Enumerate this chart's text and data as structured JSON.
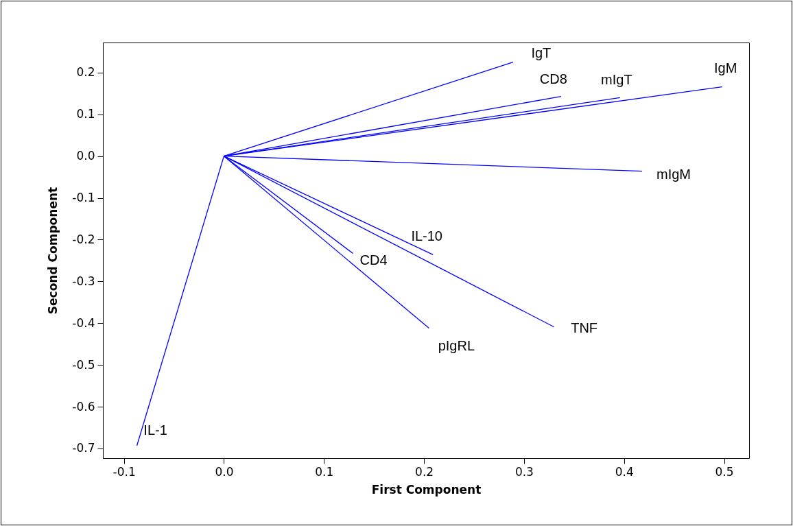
{
  "chart_data": {
    "type": "line",
    "xlabel": "First Component",
    "ylabel": "Second Component",
    "xlim": [
      -0.121,
      0.525
    ],
    "ylim": [
      -0.723,
      0.272
    ],
    "xticks": [
      -0.1,
      {
        "value": 0,
        "label": "0.0"
      },
      0.1,
      0.2,
      0.3,
      0.4,
      0.5
    ],
    "yticks": [
      -0.7,
      -0.6,
      -0.5,
      -0.4,
      -0.3,
      -0.2,
      -0.1,
      {
        "value": 0,
        "label": "0.0"
      },
      0.1,
      0.2
    ],
    "grid": false,
    "legend": false,
    "marker": "none",
    "line_style": "solid",
    "series": [
      {
        "name": "IgT",
        "color": "#0000ff",
        "x": [
          0,
          0.289
        ],
        "values": [
          0,
          0.225
        ]
      },
      {
        "name": "CD8",
        "color": "#0000ff",
        "x": [
          0,
          0.337
        ],
        "values": [
          0,
          0.143
        ]
      },
      {
        "name": "mIgT",
        "color": "#0000ff",
        "x": [
          0,
          0.396
        ],
        "values": [
          0,
          0.14
        ]
      },
      {
        "name": "IgM",
        "color": "#0000ff",
        "x": [
          0,
          0.498
        ],
        "values": [
          0,
          0.166
        ]
      },
      {
        "name": "mIgM",
        "color": "#0000ff",
        "x": [
          0,
          0.418
        ],
        "values": [
          0,
          -0.036
        ]
      },
      {
        "name": "IL-10",
        "color": "#0000ff",
        "x": [
          0,
          0.209
        ],
        "values": [
          0,
          -0.236
        ]
      },
      {
        "name": "CD4",
        "color": "#0000ff",
        "x": [
          0,
          0.129
        ],
        "values": [
          0,
          -0.233
        ]
      },
      {
        "name": "TNF",
        "color": "#0000ff",
        "x": [
          0,
          0.33
        ],
        "values": [
          0,
          -0.409
        ]
      },
      {
        "name": "pIgRL",
        "color": "#0000ff",
        "x": [
          0,
          0.205
        ],
        "values": [
          0,
          -0.412
        ]
      },
      {
        "name": "IL-1",
        "color": "#0000ff",
        "x": [
          0,
          -0.087
        ],
        "values": [
          0,
          -0.693
        ]
      }
    ]
  }
}
